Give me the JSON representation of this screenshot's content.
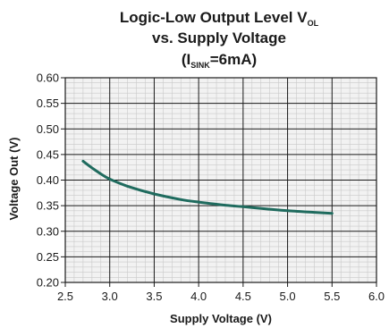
{
  "chart_data": {
    "type": "line",
    "title_line1": "Logic-Low Output Level V",
    "title_line1_sub": "OL",
    "title_line2": "vs. Supply Voltage",
    "title_line3_open": "(I",
    "title_line3_sub": "SINK",
    "title_line3_rest": "=6mA)",
    "xlabel": "Supply Voltage (V)",
    "ylabel": "Voltage Out (V)",
    "xlim": [
      2.5,
      6.0
    ],
    "ylim": [
      0.2,
      0.6
    ],
    "x_major_ticks": [
      "2.5",
      "3.0",
      "3.5",
      "4.0",
      "4.5",
      "5.0",
      "5.5",
      "6.0"
    ],
    "y_major_ticks": [
      "0.20",
      "0.25",
      "0.30",
      "0.35",
      "0.40",
      "0.45",
      "0.50",
      "0.55",
      "0.60"
    ],
    "grid": true,
    "series_color": "#1f6b5e",
    "series": [
      {
        "x": [
          2.7,
          2.8,
          2.9,
          3.0,
          3.2,
          3.5,
          3.8,
          4.0,
          4.3,
          4.5,
          4.8,
          5.0,
          5.3,
          5.5
        ],
        "y": [
          0.437,
          0.424,
          0.412,
          0.402,
          0.388,
          0.373,
          0.362,
          0.357,
          0.351,
          0.348,
          0.343,
          0.34,
          0.337,
          0.335
        ]
      }
    ]
  }
}
